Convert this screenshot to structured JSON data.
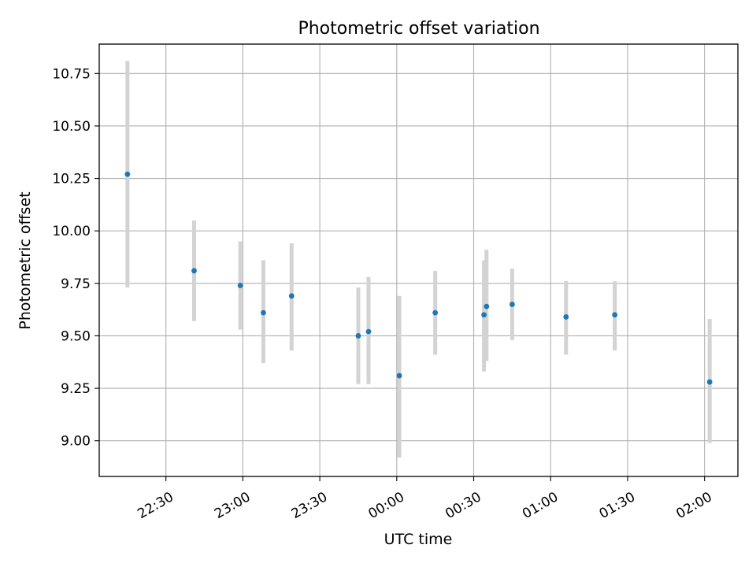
{
  "chart_data": {
    "type": "scatter",
    "title": "Photometric offset variation",
    "xlabel": "UTC time",
    "ylabel": "Photometric offset",
    "x_tick_labels": [
      "22:30",
      "23:00",
      "23:30",
      "00:00",
      "00:30",
      "01:00",
      "01:30",
      "02:00"
    ],
    "y_tick_labels": [
      "9.00",
      "9.25",
      "9.50",
      "9.75",
      "10.00",
      "10.25",
      "10.50",
      "10.75"
    ],
    "y_ticks": [
      9.0,
      9.25,
      9.5,
      9.75,
      10.0,
      10.25,
      10.5,
      10.75
    ],
    "xlim": [
      "22:04",
      "02:13"
    ],
    "ylim": [
      8.83,
      10.89
    ],
    "grid": true,
    "series": [
      {
        "color": "#1f77b4",
        "errorbar_color": "#d3d3d3",
        "points": [
          {
            "x": "22:15",
            "y": 10.27,
            "lo": 9.73,
            "hi": 10.81
          },
          {
            "x": "22:41",
            "y": 9.81,
            "lo": 9.57,
            "hi": 10.05
          },
          {
            "x": "22:59",
            "y": 9.74,
            "lo": 9.53,
            "hi": 9.95
          },
          {
            "x": "23:08",
            "y": 9.61,
            "lo": 9.37,
            "hi": 9.86
          },
          {
            "x": "23:19",
            "y": 9.69,
            "lo": 9.43,
            "hi": 9.94
          },
          {
            "x": "23:45",
            "y": 9.5,
            "lo": 9.27,
            "hi": 9.73
          },
          {
            "x": "23:49",
            "y": 9.52,
            "lo": 9.27,
            "hi": 9.78
          },
          {
            "x": "00:01",
            "y": 9.31,
            "lo": 8.92,
            "hi": 9.69
          },
          {
            "x": "00:15",
            "y": 9.61,
            "lo": 9.41,
            "hi": 9.81
          },
          {
            "x": "00:34",
            "y": 9.6,
            "lo": 9.33,
            "hi": 9.86
          },
          {
            "x": "00:35",
            "y": 9.64,
            "lo": 9.38,
            "hi": 9.91
          },
          {
            "x": "00:45",
            "y": 9.65,
            "lo": 9.48,
            "hi": 9.82
          },
          {
            "x": "01:06",
            "y": 9.59,
            "lo": 9.41,
            "hi": 9.76
          },
          {
            "x": "01:25",
            "y": 9.6,
            "lo": 9.43,
            "hi": 9.76
          },
          {
            "x": "02:02",
            "y": 9.28,
            "lo": 8.99,
            "hi": 9.58
          }
        ]
      }
    ]
  }
}
